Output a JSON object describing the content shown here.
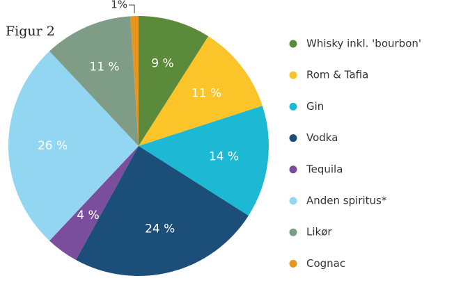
{
  "chart_data": {
    "type": "pie",
    "title": "Figur 2",
    "categories": [
      "Whisky inkl. 'bourbon'",
      "Rom & Tafia",
      "Gin",
      "Vodka",
      "Tequila",
      "Anden spiritus*",
      "Likør",
      "Cognac"
    ],
    "values": [
      9,
      11,
      14,
      24,
      4,
      26,
      11,
      1
    ],
    "value_labels": [
      "9 %",
      "11 %",
      "14 %",
      "24 %",
      "4 %",
      "26 %",
      "11 %",
      "1%"
    ],
    "colors": [
      "#5a8a3a",
      "#fbc52a",
      "#1db9d4",
      "#1b4e78",
      "#7a4e9d",
      "#93d6f2",
      "#7f9d86",
      "#e8951f"
    ],
    "legend": "right"
  }
}
